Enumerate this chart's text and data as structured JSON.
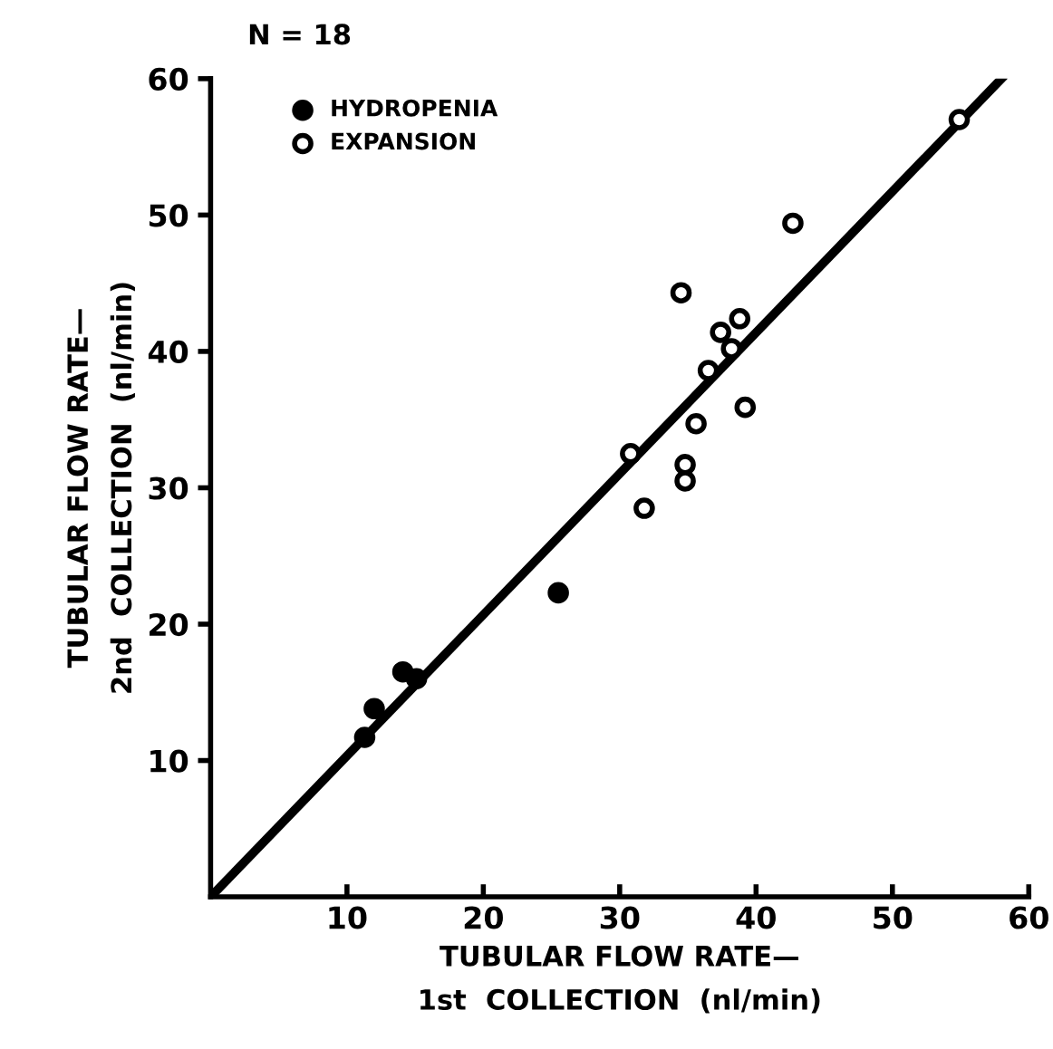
{
  "chart_data": {
    "type": "scatter",
    "xlabel": "TUBULAR FLOW RATE—\n1st  COLLECTION  (nl/min)",
    "ylabel": "TUBULAR FLOW RATE—\n2nd  COLLECTION  (nl/min)",
    "annotations": [
      "N = 18"
    ],
    "xlim": [
      0,
      60
    ],
    "ylim": [
      0,
      60
    ],
    "xticks": [
      10,
      20,
      30,
      40,
      50,
      60
    ],
    "yticks": [
      10,
      20,
      30,
      40,
      50,
      60
    ],
    "grid": false,
    "legend": "top left",
    "series": [
      {
        "name": "HYDROPENIA",
        "color": "#000000",
        "marker": "circle",
        "x": [
          11.3,
          12.0,
          14.1,
          15.1,
          25.5
        ],
        "values": [
          11.7,
          13.8,
          16.5,
          16.0,
          22.3
        ]
      },
      {
        "name": "EXPANSION",
        "color": "#ffffff",
        "marker": "circle",
        "x": [
          42.7,
          34.5,
          38.8,
          37.4,
          38.2,
          36.5,
          39.2,
          35.6,
          30.8,
          34.8,
          34.8,
          31.8,
          54.9
        ],
        "values": [
          49.4,
          44.3,
          42.4,
          41.4,
          40.2,
          38.6,
          35.9,
          34.7,
          32.5,
          31.7,
          30.5,
          28.5,
          57.0
        ]
      },
      {
        "color": "#000000",
        "type": "line",
        "marker": "none",
        "x": [
          0,
          58
        ],
        "values": [
          0,
          60
        ]
      }
    ]
  }
}
